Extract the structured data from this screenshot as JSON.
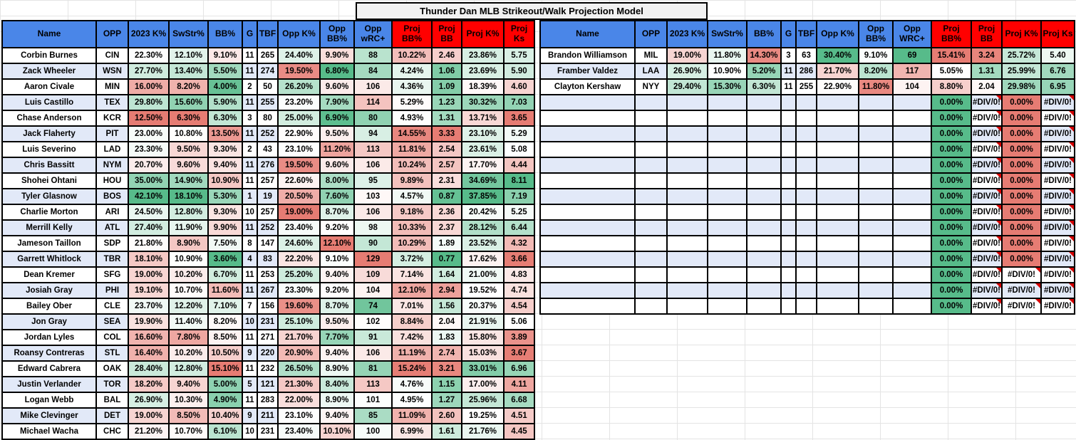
{
  "title": "Thunder Dan MLB Strikeout/Walk Projection Model",
  "colors": {
    "header_blue": "#4a86e8",
    "header_red": "#ff0000",
    "stripe_blue": "#e2e9f8",
    "title_bg": "#f1f1f1",
    "scale_green": "#57bb8a",
    "scale_red": "#e67c73",
    "error_triangle": "#d50000",
    "border_black": "#000000"
  },
  "column_meta": [
    {
      "key": "name",
      "scale": null,
      "header": "blue"
    },
    {
      "key": "opp",
      "scale": null,
      "header": "blue"
    },
    {
      "key": "k2023",
      "scale": "asc",
      "header": "blue"
    },
    {
      "key": "swstr",
      "scale": "asc",
      "header": "blue"
    },
    {
      "key": "bb-pct",
      "scale": "desc",
      "header": "blue"
    },
    {
      "key": "g",
      "scale": null,
      "header": "blue"
    },
    {
      "key": "tbf",
      "scale": null,
      "header": "blue"
    },
    {
      "key": "opp-k",
      "scale": "asc",
      "header": "blue"
    },
    {
      "key": "opp-bb",
      "scale": "desc",
      "header": "blue"
    },
    {
      "key": "opp-wrc",
      "scale": "desc",
      "header": "blue"
    },
    {
      "key": "proj-bb-pct",
      "scale": "desc",
      "header": "red"
    },
    {
      "key": "proj-bb",
      "scale": "desc",
      "header": "red"
    },
    {
      "key": "proj-k-pct",
      "scale": "asc",
      "header": "red"
    },
    {
      "key": "proj-ks",
      "scale": "asc",
      "header": "red"
    }
  ],
  "left_table": {
    "headers": [
      "Name",
      "OPP",
      "2023 K%",
      "SwStr%",
      "BB%",
      "G",
      "TBF",
      "Opp K%",
      "Opp BB%",
      "Opp wRC+",
      "Proj BB%",
      "Proj BB",
      "Proj K%",
      "Proj Ks"
    ],
    "rows": [
      [
        "Corbin Burnes",
        "CIN",
        "22.30%",
        "12.10%",
        "9.10%",
        "11",
        "265",
        "24.40%",
        "9.90%",
        "88",
        "10.22%",
        "2.46",
        "23.86%",
        "5.75"
      ],
      [
        "Zack Wheeler",
        "WSN",
        "27.70%",
        "13.40%",
        "5.50%",
        "11",
        "274",
        "19.50%",
        "6.80%",
        "84",
        "4.24%",
        "1.06",
        "23.69%",
        "5.90"
      ],
      [
        "Aaron Civale",
        "MIN",
        "16.00%",
        "8.20%",
        "4.00%",
        "2",
        "50",
        "26.20%",
        "9.60%",
        "106",
        "4.36%",
        "1.09",
        "18.39%",
        "4.60"
      ],
      [
        "Luis Castillo",
        "TEX",
        "29.80%",
        "15.60%",
        "5.90%",
        "11",
        "255",
        "23.20%",
        "7.90%",
        "114",
        "5.29%",
        "1.23",
        "30.32%",
        "7.03"
      ],
      [
        "Chase Anderson",
        "KCR",
        "12.50%",
        "6.30%",
        "6.30%",
        "3",
        "80",
        "25.00%",
        "6.90%",
        "80",
        "4.93%",
        "1.31",
        "13.71%",
        "3.65"
      ],
      [
        "Jack Flaherty",
        "PIT",
        "23.00%",
        "10.80%",
        "13.50%",
        "11",
        "252",
        "22.90%",
        "9.50%",
        "94",
        "14.55%",
        "3.33",
        "23.10%",
        "5.29"
      ],
      [
        "Luis Severino",
        "LAD",
        "23.30%",
        "9.50%",
        "9.30%",
        "2",
        "43",
        "23.10%",
        "11.20%",
        "113",
        "11.81%",
        "2.54",
        "23.61%",
        "5.08"
      ],
      [
        "Chris Bassitt",
        "NYM",
        "20.70%",
        "9.60%",
        "9.40%",
        "11",
        "276",
        "19.50%",
        "9.60%",
        "106",
        "10.24%",
        "2.57",
        "17.70%",
        "4.44"
      ],
      [
        "Shohei Ohtani",
        "HOU",
        "35.00%",
        "14.90%",
        "10.90%",
        "11",
        "257",
        "22.60%",
        "8.00%",
        "95",
        "9.89%",
        "2.31",
        "34.69%",
        "8.11"
      ],
      [
        "Tyler Glasnow",
        "BOS",
        "42.10%",
        "18.10%",
        "5.30%",
        "1",
        "19",
        "20.50%",
        "7.60%",
        "103",
        "4.57%",
        "0.87",
        "37.85%",
        "7.19"
      ],
      [
        "Charlie Morton",
        "ARI",
        "24.50%",
        "12.80%",
        "9.30%",
        "10",
        "257",
        "19.00%",
        "8.70%",
        "106",
        "9.18%",
        "2.36",
        "20.42%",
        "5.25"
      ],
      [
        "Merrill Kelly",
        "ATL",
        "27.40%",
        "11.90%",
        "9.90%",
        "11",
        "252",
        "23.40%",
        "9.20%",
        "98",
        "10.33%",
        "2.37",
        "28.12%",
        "6.44"
      ],
      [
        "Jameson Taillon",
        "SDP",
        "21.80%",
        "8.90%",
        "7.50%",
        "8",
        "147",
        "24.60%",
        "12.10%",
        "90",
        "10.29%",
        "1.89",
        "23.52%",
        "4.32"
      ],
      [
        "Garrett Whitlock",
        "TBR",
        "18.10%",
        "10.90%",
        "3.60%",
        "4",
        "83",
        "22.20%",
        "9.10%",
        "129",
        "3.72%",
        "0.77",
        "17.62%",
        "3.66"
      ],
      [
        "Dean Kremer",
        "SFG",
        "19.00%",
        "10.20%",
        "6.70%",
        "11",
        "253",
        "25.20%",
        "9.40%",
        "109",
        "7.14%",
        "1.64",
        "21.00%",
        "4.83"
      ],
      [
        "Josiah Gray",
        "PHI",
        "19.10%",
        "10.70%",
        "11.60%",
        "11",
        "267",
        "23.30%",
        "9.20%",
        "104",
        "12.10%",
        "2.94",
        "19.52%",
        "4.74"
      ],
      [
        "Bailey Ober",
        "CLE",
        "23.70%",
        "12.20%",
        "7.10%",
        "7",
        "156",
        "19.60%",
        "8.70%",
        "74",
        "7.01%",
        "1.56",
        "20.37%",
        "4.54"
      ],
      [
        "Jon Gray",
        "SEA",
        "19.90%",
        "11.40%",
        "8.20%",
        "10",
        "231",
        "25.10%",
        "9.50%",
        "102",
        "8.84%",
        "2.04",
        "21.91%",
        "5.06"
      ],
      [
        "Jordan Lyles",
        "COL",
        "16.60%",
        "7.80%",
        "8.50%",
        "11",
        "271",
        "21.70%",
        "7.70%",
        "91",
        "7.42%",
        "1.83",
        "15.80%",
        "3.89"
      ],
      [
        "Roansy Contreras",
        "STL",
        "16.40%",
        "10.20%",
        "10.50%",
        "9",
        "220",
        "20.90%",
        "9.40%",
        "106",
        "11.19%",
        "2.74",
        "15.03%",
        "3.67"
      ],
      [
        "Edward Cabrera",
        "OAK",
        "28.40%",
        "12.80%",
        "15.10%",
        "11",
        "232",
        "26.50%",
        "8.90%",
        "81",
        "15.24%",
        "3.21",
        "33.01%",
        "6.96"
      ],
      [
        "Justin Verlander",
        "TOR",
        "18.20%",
        "9.40%",
        "5.00%",
        "5",
        "121",
        "21.30%",
        "8.40%",
        "113",
        "4.76%",
        "1.15",
        "17.00%",
        "4.11"
      ],
      [
        "Logan Webb",
        "BAL",
        "26.90%",
        "10.30%",
        "4.90%",
        "11",
        "283",
        "22.00%",
        "8.90%",
        "101",
        "4.95%",
        "1.27",
        "25.96%",
        "6.68"
      ],
      [
        "Mike Clevinger",
        "DET",
        "19.00%",
        "8.50%",
        "10.40%",
        "9",
        "211",
        "23.10%",
        "9.40%",
        "85",
        "11.09%",
        "2.60",
        "19.25%",
        "4.51"
      ],
      [
        "Michael Wacha",
        "CHC",
        "21.20%",
        "10.70%",
        "6.10%",
        "10",
        "231",
        "23.40%",
        "10.10%",
        "100",
        "6.99%",
        "1.61",
        "21.76%",
        "4.45"
      ]
    ]
  },
  "right_table": {
    "headers": [
      "Name",
      "OPP",
      "2023 K%",
      "SwStr%",
      "BB%",
      "G",
      "TBF",
      "Opp K%",
      "Opp BB%",
      "Opp WRC+",
      "Proj BB%",
      "Proj BB",
      "Proj K%",
      "Proj Ks"
    ],
    "rows": [
      [
        "Brandon Williamson",
        "MIL",
        "19.00%",
        "11.80%",
        "14.30%",
        "3",
        "63",
        "30.40%",
        "9.10%",
        "69",
        "15.41%",
        "3.24",
        "25.72%",
        "5.40"
      ],
      [
        "Framber Valdez",
        "LAA",
        "26.90%",
        "10.90%",
        "5.20%",
        "11",
        "286",
        "21.70%",
        "8.20%",
        "117",
        "5.05%",
        "1.31",
        "25.99%",
        "6.76"
      ],
      [
        "Clayton Kershaw",
        "NYY",
        "29.40%",
        "15.30%",
        "6.30%",
        "11",
        "255",
        "22.90%",
        "11.80%",
        "104",
        "8.80%",
        "2.04",
        "29.98%",
        "6.95"
      ],
      [
        "",
        "",
        "",
        "",
        "",
        "",
        "",
        "",
        "",
        "",
        "0.00%",
        "#DIV/0!",
        "0.00%",
        "#DIV/0!"
      ],
      [
        "",
        "",
        "",
        "",
        "",
        "",
        "",
        "",
        "",
        "",
        "0.00%",
        "#DIV/0!",
        "0.00%",
        "#DIV/0!"
      ],
      [
        "",
        "",
        "",
        "",
        "",
        "",
        "",
        "",
        "",
        "",
        "0.00%",
        "#DIV/0!",
        "0.00%",
        "#DIV/0!"
      ],
      [
        "",
        "",
        "",
        "",
        "",
        "",
        "",
        "",
        "",
        "",
        "0.00%",
        "#DIV/0!",
        "0.00%",
        "#DIV/0!"
      ],
      [
        "",
        "",
        "",
        "",
        "",
        "",
        "",
        "",
        "",
        "",
        "0.00%",
        "#DIV/0!",
        "0.00%",
        "#DIV/0!"
      ],
      [
        "",
        "",
        "",
        "",
        "",
        "",
        "",
        "",
        "",
        "",
        "0.00%",
        "#DIV/0!",
        "0.00%",
        "#DIV/0!"
      ],
      [
        "",
        "",
        "",
        "",
        "",
        "",
        "",
        "",
        "",
        "",
        "0.00%",
        "#DIV/0!",
        "0.00%",
        "#DIV/0!"
      ],
      [
        "",
        "",
        "",
        "",
        "",
        "",
        "",
        "",
        "",
        "",
        "0.00%",
        "#DIV/0!",
        "0.00%",
        "#DIV/0!"
      ],
      [
        "",
        "",
        "",
        "",
        "",
        "",
        "",
        "",
        "",
        "",
        "0.00%",
        "#DIV/0!",
        "0.00%",
        "#DIV/0!"
      ],
      [
        "",
        "",
        "",
        "",
        "",
        "",
        "",
        "",
        "",
        "",
        "0.00%",
        "#DIV/0!",
        "0.00%",
        "#DIV/0!"
      ],
      [
        "",
        "",
        "",
        "",
        "",
        "",
        "",
        "",
        "",
        "",
        "0.00%",
        "#DIV/0!",
        "0.00%",
        "#DIV/0!"
      ],
      [
        "",
        "",
        "",
        "",
        "",
        "",
        "",
        "",
        "",
        "",
        "0.00%",
        "#DIV/0!",
        "#DIV/0!",
        "#DIV/0!"
      ],
      [
        "",
        "",
        "",
        "",
        "",
        "",
        "",
        "",
        "",
        "",
        "0.00%",
        "#DIV/0!",
        "#DIV/0!",
        "#DIV/0!"
      ],
      [
        "",
        "",
        "",
        "",
        "",
        "",
        "",
        "",
        "",
        "",
        "0.00%",
        "#DIV/0!",
        "#DIV/0!",
        "#DIV/0!"
      ]
    ]
  }
}
